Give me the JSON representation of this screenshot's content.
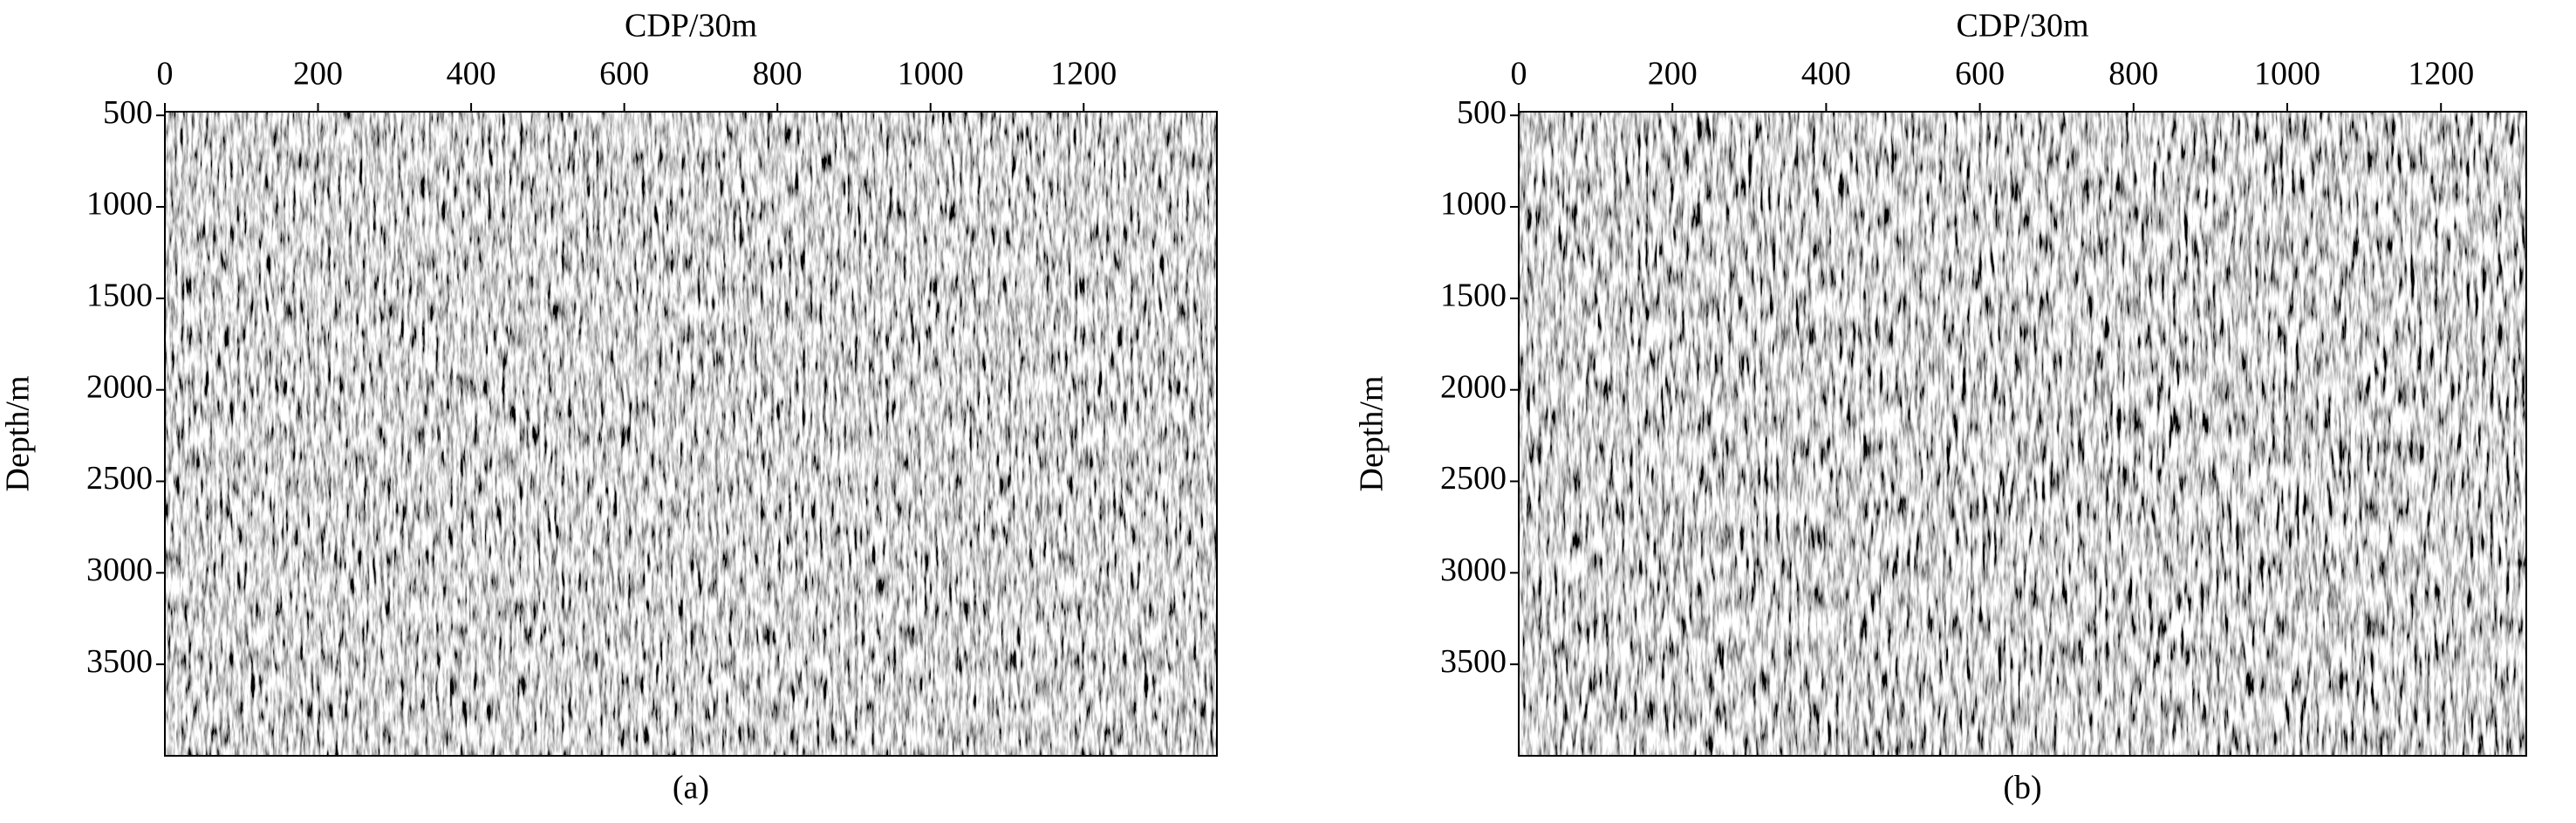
{
  "chart_data": [
    {
      "type": "seismic",
      "xlabel": "CDP/30m",
      "ylabel": "Depth/m",
      "caption": "(a)",
      "xlim": [
        0,
        1374
      ],
      "xticks": [
        0,
        200,
        400,
        600,
        800,
        1000,
        1200
      ],
      "ylim": [
        480,
        4000
      ],
      "yticks": [
        500,
        1000,
        1500,
        2000,
        2500,
        3000,
        3500
      ],
      "y_inverted": true
    },
    {
      "type": "seismic",
      "xlabel": "CDP/30m",
      "ylabel": "Depth/m",
      "caption": "(b)",
      "xlim": [
        0,
        1311
      ],
      "xticks": [
        0,
        200,
        400,
        600,
        800,
        1000,
        1200
      ],
      "ylim": [
        480,
        4000
      ],
      "yticks": [
        500,
        1000,
        1500,
        2000,
        2500,
        3000,
        3500
      ],
      "y_inverted": true
    }
  ]
}
